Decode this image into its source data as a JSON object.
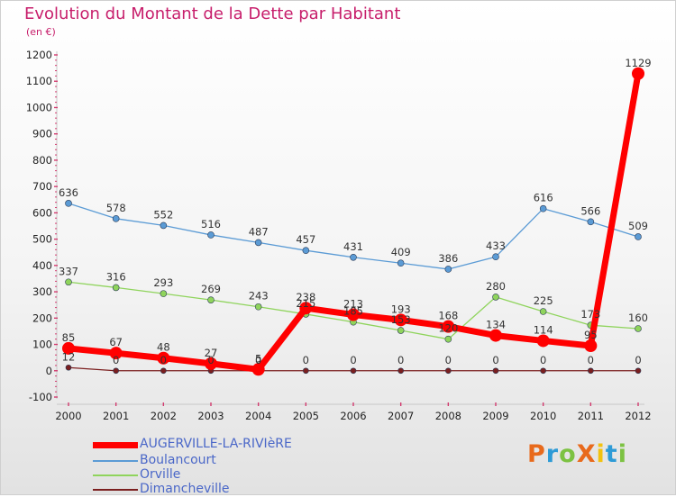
{
  "header": {
    "title": "Evolution du Montant de la Dette par Habitant",
    "unit": "(en €)"
  },
  "logo": {
    "text": "ProXiti",
    "colors": [
      "#e86a1c",
      "#2e9bd6",
      "#7cc242",
      "#e86a1c",
      "#f2c20f",
      "#2e9bd6",
      "#7cc242"
    ]
  },
  "chart_data": {
    "type": "line",
    "title": "Evolution du Montant de la Dette par Habitant",
    "ylabel": "(en €)",
    "xlabel": "",
    "x": [
      "2000",
      "2001",
      "2002",
      "2003",
      "2004",
      "2005",
      "2006",
      "2007",
      "2008",
      "2009",
      "2010",
      "2011",
      "2012"
    ],
    "ylim": [
      -100,
      1200
    ],
    "yticks": [
      -100,
      0,
      100,
      200,
      300,
      400,
      500,
      600,
      700,
      800,
      900,
      1000,
      1100,
      1200
    ],
    "grid": false,
    "legend_position": "bottom-left",
    "series": [
      {
        "name": "AUGERVILLE-LA-RIVIèRE",
        "color": "#ff0000",
        "width": 7,
        "marker": 7,
        "values": [
          85,
          67,
          48,
          27,
          5,
          238,
          213,
          193,
          168,
          134,
          114,
          95,
          1129
        ],
        "labels": [
          "85",
          "67",
          "48",
          "27",
          "5",
          "238",
          "213",
          "193",
          "168",
          "134",
          "114",
          "95",
          "1129"
        ]
      },
      {
        "name": "Boulancourt",
        "color": "#5b9bd5",
        "width": 1.3,
        "marker": 3.5,
        "values": [
          636,
          578,
          552,
          516,
          487,
          457,
          431,
          409,
          386,
          433,
          616,
          566,
          509
        ],
        "labels": [
          "636",
          "578",
          "552",
          "516",
          "487",
          "457",
          "431",
          "409",
          "386",
          "433",
          "616",
          "566",
          "509"
        ]
      },
      {
        "name": "Orville",
        "color": "#8fd45c",
        "width": 1.3,
        "marker": 3.5,
        "values": [
          337,
          316,
          293,
          269,
          243,
          215,
          185,
          153,
          120,
          280,
          225,
          173,
          160
        ],
        "labels": [
          "337",
          "316",
          "293",
          "269",
          "243",
          "215",
          "185",
          "153",
          "120",
          "280",
          "225",
          "173",
          "160"
        ]
      },
      {
        "name": "Dimancheville",
        "color": "#7b1f1f",
        "width": 1.3,
        "marker": 3,
        "values": [
          12,
          0,
          0,
          0,
          0,
          0,
          0,
          0,
          0,
          0,
          0,
          0,
          0
        ],
        "labels": [
          "12",
          "0",
          "0",
          "0",
          "0",
          "0",
          "0",
          "0",
          "0",
          "0",
          "0",
          "0",
          "0"
        ]
      }
    ]
  }
}
